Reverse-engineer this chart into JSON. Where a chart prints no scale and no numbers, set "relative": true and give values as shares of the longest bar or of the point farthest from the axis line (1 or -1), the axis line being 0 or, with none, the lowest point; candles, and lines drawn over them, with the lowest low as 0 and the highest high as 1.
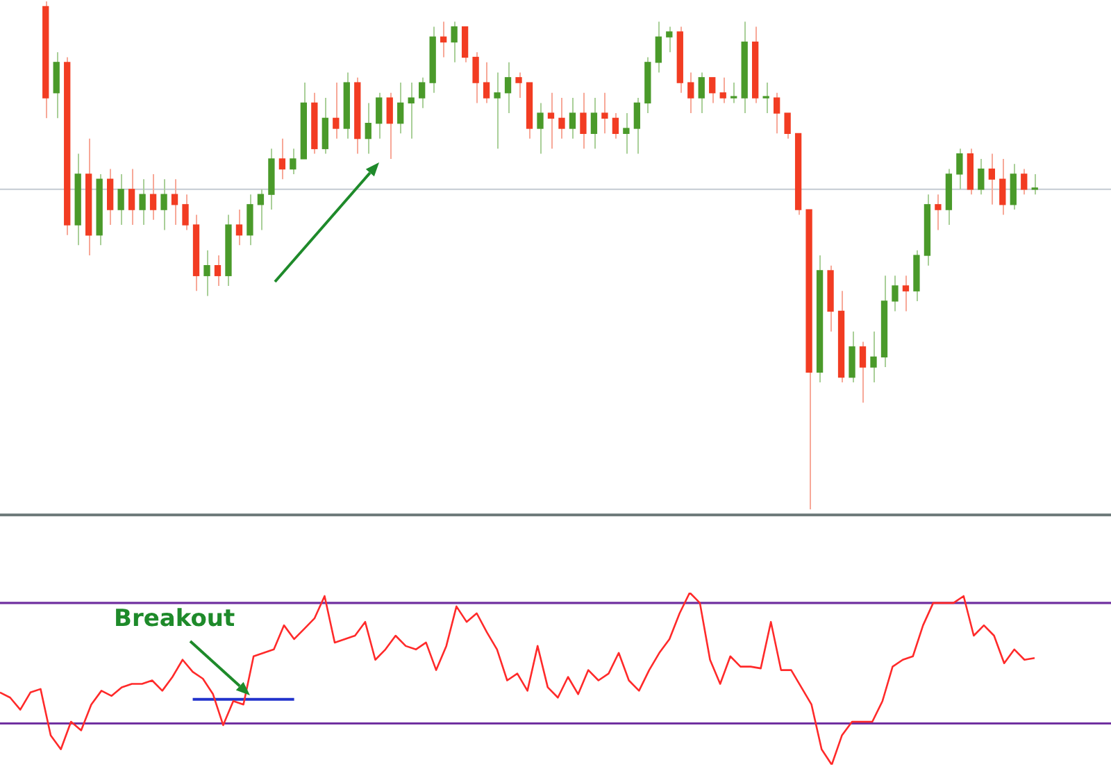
{
  "chart_data": [
    {
      "type": "candlestick",
      "relative": true,
      "categories": [
        null,
        null,
        null,
        null,
        null,
        null,
        null,
        null,
        null,
        null,
        null,
        null,
        null,
        null,
        null,
        null,
        null,
        null,
        null,
        null,
        null,
        null,
        null,
        null,
        null,
        null,
        null,
        null,
        null,
        null,
        null,
        null,
        null,
        null,
        null,
        null,
        null,
        null,
        null,
        null,
        null,
        null,
        null,
        null,
        null,
        null,
        null,
        null,
        null,
        null,
        null,
        null,
        null,
        null,
        null,
        null,
        null,
        null,
        null,
        null,
        null,
        null,
        null,
        null,
        null,
        null,
        null,
        null,
        null,
        null,
        null,
        null,
        null,
        null,
        null,
        null,
        null,
        null,
        null,
        null,
        null,
        null,
        null,
        null,
        null,
        null,
        null,
        null,
        null,
        null,
        null,
        null,
        null
      ],
      "ohlc": [
        [
          0.99,
          1.0,
          0.77,
          0.81
        ],
        [
          0.82,
          0.9,
          0.77,
          0.88
        ],
        [
          0.88,
          0.89,
          0.54,
          0.56
        ],
        [
          0.56,
          0.7,
          0.52,
          0.66
        ],
        [
          0.66,
          0.73,
          0.5,
          0.54
        ],
        [
          0.54,
          0.66,
          0.52,
          0.65
        ],
        [
          0.65,
          0.67,
          0.56,
          0.59
        ],
        [
          0.59,
          0.66,
          0.56,
          0.63
        ],
        [
          0.63,
          0.67,
          0.56,
          0.59
        ],
        [
          0.59,
          0.65,
          0.56,
          0.62
        ],
        [
          0.62,
          0.66,
          0.57,
          0.59
        ],
        [
          0.59,
          0.65,
          0.55,
          0.62
        ],
        [
          0.62,
          0.65,
          0.56,
          0.6
        ],
        [
          0.6,
          0.62,
          0.55,
          0.56
        ],
        [
          0.56,
          0.58,
          0.43,
          0.46
        ],
        [
          0.46,
          0.51,
          0.42,
          0.48
        ],
        [
          0.48,
          0.5,
          0.44,
          0.46
        ],
        [
          0.46,
          0.58,
          0.44,
          0.56
        ],
        [
          0.56,
          0.59,
          0.52,
          0.54
        ],
        [
          0.54,
          0.62,
          0.52,
          0.6
        ],
        [
          0.6,
          0.63,
          0.55,
          0.62
        ],
        [
          0.62,
          0.71,
          0.59,
          0.69
        ],
        [
          0.69,
          0.73,
          0.65,
          0.67
        ],
        [
          0.67,
          0.71,
          0.66,
          0.69
        ],
        [
          0.69,
          0.84,
          0.69,
          0.8
        ],
        [
          0.8,
          0.82,
          0.7,
          0.71
        ],
        [
          0.71,
          0.81,
          0.7,
          0.77
        ],
        [
          0.77,
          0.84,
          0.73,
          0.75
        ],
        [
          0.75,
          0.86,
          0.73,
          0.84
        ],
        [
          0.84,
          0.85,
          0.7,
          0.73
        ],
        [
          0.73,
          0.8,
          0.7,
          0.76
        ],
        [
          0.76,
          0.82,
          0.73,
          0.81
        ],
        [
          0.81,
          0.82,
          0.69,
          0.76
        ],
        [
          0.76,
          0.84,
          0.74,
          0.8
        ],
        [
          0.8,
          0.84,
          0.73,
          0.81
        ],
        [
          0.81,
          0.85,
          0.79,
          0.84
        ],
        [
          0.84,
          0.95,
          0.82,
          0.93
        ],
        [
          0.93,
          0.96,
          0.89,
          0.92
        ],
        [
          0.92,
          0.96,
          0.88,
          0.95
        ],
        [
          0.95,
          0.95,
          0.88,
          0.89
        ],
        [
          0.89,
          0.9,
          0.8,
          0.84
        ],
        [
          0.84,
          0.88,
          0.8,
          0.81
        ],
        [
          0.81,
          0.86,
          0.71,
          0.82
        ],
        [
          0.82,
          0.88,
          0.78,
          0.85
        ],
        [
          0.85,
          0.86,
          0.81,
          0.84
        ],
        [
          0.84,
          0.84,
          0.73,
          0.75
        ],
        [
          0.75,
          0.8,
          0.7,
          0.78
        ],
        [
          0.78,
          0.82,
          0.71,
          0.77
        ],
        [
          0.77,
          0.81,
          0.73,
          0.75
        ],
        [
          0.75,
          0.81,
          0.73,
          0.78
        ],
        [
          0.78,
          0.82,
          0.71,
          0.74
        ],
        [
          0.74,
          0.81,
          0.71,
          0.78
        ],
        [
          0.78,
          0.82,
          0.74,
          0.77
        ],
        [
          0.77,
          0.78,
          0.73,
          0.74
        ],
        [
          0.74,
          0.78,
          0.7,
          0.75
        ],
        [
          0.75,
          0.81,
          0.7,
          0.8
        ],
        [
          0.8,
          0.89,
          0.78,
          0.88
        ],
        [
          0.88,
          0.96,
          0.86,
          0.93
        ],
        [
          0.93,
          0.95,
          0.9,
          0.94
        ],
        [
          0.94,
          0.95,
          0.82,
          0.84
        ],
        [
          0.84,
          0.86,
          0.78,
          0.81
        ],
        [
          0.81,
          0.86,
          0.78,
          0.85
        ],
        [
          0.85,
          0.85,
          0.8,
          0.82
        ],
        [
          0.82,
          0.85,
          0.8,
          0.81
        ],
        [
          0.81,
          0.84,
          0.8,
          0.81
        ],
        [
          0.81,
          0.96,
          0.78,
          0.92
        ],
        [
          0.92,
          0.95,
          0.8,
          0.81
        ],
        [
          0.81,
          0.84,
          0.78,
          0.81
        ],
        [
          0.81,
          0.82,
          0.74,
          0.78
        ],
        [
          0.78,
          0.78,
          0.73,
          0.74
        ],
        [
          0.74,
          0.74,
          0.58,
          0.59
        ],
        [
          0.59,
          0.59,
          0,
          0.27
        ],
        [
          0.27,
          0.5,
          0.25,
          0.47
        ],
        [
          0.47,
          0.48,
          0.35,
          0.39
        ],
        [
          0.39,
          0.43,
          0.25,
          0.26
        ],
        [
          0.26,
          0.35,
          0.25,
          0.32
        ],
        [
          0.32,
          0.33,
          0.21,
          0.28
        ],
        [
          0.28,
          0.35,
          0.25,
          0.3
        ],
        [
          0.3,
          0.46,
          0.28,
          0.41
        ],
        [
          0.41,
          0.46,
          0.39,
          0.44
        ],
        [
          0.44,
          0.46,
          0.39,
          0.43
        ],
        [
          0.43,
          0.51,
          0.41,
          0.5
        ],
        [
          0.5,
          0.62,
          0.48,
          0.6
        ],
        [
          0.6,
          0.62,
          0.55,
          0.59
        ],
        [
          0.59,
          0.67,
          0.56,
          0.66
        ],
        [
          0.66,
          0.71,
          0.63,
          0.7
        ],
        [
          0.7,
          0.71,
          0.62,
          0.63
        ],
        [
          0.63,
          0.69,
          0.62,
          0.67
        ],
        [
          0.67,
          0.7,
          0.6,
          0.65
        ],
        [
          0.65,
          0.69,
          0.58,
          0.6
        ],
        [
          0.6,
          0.68,
          0.59,
          0.66
        ],
        [
          0.66,
          0.67,
          0.62,
          0.63
        ],
        [
          0.63,
          0.66,
          0.62,
          0.63
        ]
      ],
      "ref_lines": [
        {
          "axis": "y",
          "value": 0.63,
          "color": "#c4cad2"
        }
      ]
    },
    {
      "type": "line",
      "relative": true,
      "legend": false,
      "marker": "none",
      "categories": [
        null,
        null,
        null,
        null,
        null,
        null,
        null,
        null,
        null,
        null,
        null,
        null,
        null,
        null,
        null,
        null,
        null,
        null,
        null,
        null,
        null,
        null,
        null,
        null,
        null,
        null,
        null,
        null,
        null,
        null,
        null,
        null,
        null,
        null,
        null,
        null,
        null,
        null,
        null,
        null,
        null,
        null,
        null,
        null,
        null,
        null,
        null,
        null,
        null,
        null,
        null,
        null,
        null,
        null,
        null,
        null,
        null,
        null,
        null,
        null,
        null,
        null,
        null,
        null,
        null,
        null,
        null,
        null,
        null,
        null,
        null,
        null,
        null,
        null,
        null,
        null,
        null,
        null,
        null,
        null,
        null,
        null,
        null,
        null,
        null,
        null,
        null,
        null,
        null,
        null,
        null,
        null,
        null,
        null,
        null,
        null,
        null,
        null,
        null,
        null,
        null,
        null,
        null
      ],
      "series": [
        {
          "color": "#ff2a2a",
          "values": [
            0.42,
            0.39,
            0.32,
            0.42,
            0.44,
            0.17,
            0.09,
            0.25,
            0.2,
            0.35,
            0.43,
            0.4,
            0.45,
            0.47,
            0.47,
            0.49,
            0.43,
            0.51,
            0.61,
            0.54,
            0.5,
            0.41,
            0.23,
            0.37,
            0.35,
            0.63,
            0.65,
            0.67,
            0.81,
            0.73,
            0.79,
            0.85,
            0.98,
            0.71,
            0.73,
            0.75,
            0.83,
            0.61,
            0.67,
            0.75,
            0.69,
            0.67,
            0.71,
            0.55,
            0.69,
            0.92,
            0.83,
            0.88,
            0.77,
            0.67,
            0.49,
            0.53,
            0.43,
            0.69,
            0.45,
            0.39,
            0.51,
            0.41,
            0.55,
            0.49,
            0.53,
            0.65,
            0.49,
            0.43,
            0.55,
            0.65,
            0.73,
            0.88,
            1.0,
            0.94,
            0.61,
            0.47,
            0.63,
            0.57,
            0.57,
            0.56,
            0.83,
            0.55,
            0.55,
            0.45,
            0.35,
            0.09,
            0,
            0.17,
            0.25,
            0.25,
            0.25,
            0.37,
            0.57,
            0.61,
            0.63,
            0.81,
            0.94,
            0.94,
            0.94,
            0.98,
            0.75,
            0.81,
            0.75,
            0.59,
            0.67,
            0.61,
            0.62
          ]
        },
        {
          "color": "#2233cc",
          "values": [
            null,
            null,
            null,
            null,
            null,
            null,
            null,
            null,
            null,
            null,
            null,
            null,
            null,
            null,
            null,
            null,
            null,
            null,
            null,
            0.38,
            0.38,
            0.38,
            0.38,
            0.38,
            0.38,
            0.38,
            0.38,
            0.38,
            0.38,
            0.38,
            null,
            null,
            null,
            null,
            null,
            null,
            null,
            null,
            null,
            null,
            null,
            null,
            null,
            null,
            null,
            null,
            null,
            null,
            null,
            null,
            null,
            null,
            null,
            null,
            null,
            null,
            null,
            null,
            null,
            null,
            null,
            null,
            null,
            null,
            null,
            null,
            null,
            null,
            null,
            null,
            null,
            null,
            null,
            null,
            null,
            null,
            null,
            null,
            null,
            null,
            null,
            null,
            null,
            null,
            null,
            null,
            null,
            null,
            null,
            null,
            null,
            null,
            null,
            null,
            null,
            null,
            null,
            null,
            null,
            null,
            null,
            null,
            null
          ]
        }
      ],
      "ref_lines": [
        {
          "axis": "y",
          "value": 0.94,
          "color": "#7030a0"
        },
        {
          "axis": "y",
          "value": 0.24,
          "color": "#7030a0"
        }
      ],
      "annotations": [
        "Breakout"
      ]
    }
  ]
}
